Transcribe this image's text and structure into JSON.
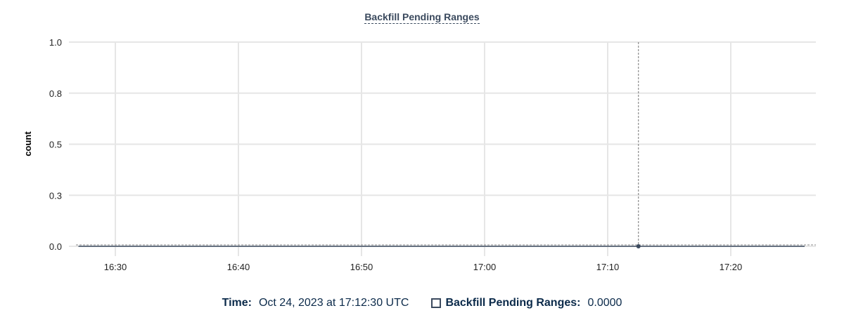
{
  "chart_data": {
    "type": "line",
    "title": "Backfill Pending Ranges",
    "xlabel": "",
    "ylabel": "count",
    "x_ticks": [
      "16:30",
      "16:40",
      "16:50",
      "17:00",
      "17:10",
      "17:20"
    ],
    "y_ticks": [
      "0.0",
      "0.3",
      "0.5",
      "0.8",
      "1.0"
    ],
    "ylim": [
      0,
      1
    ],
    "xlim": [
      "16:26:48",
      "17:26:30"
    ],
    "grid": true,
    "series": [
      {
        "name": "Backfill Pending Ranges",
        "color": "#3b4a5e",
        "points": [
          [
            "16:27:00",
            0
          ],
          [
            "17:12:30",
            0
          ],
          [
            "17:26:00",
            0
          ]
        ]
      }
    ],
    "crosshair": {
      "time": "17:12:30",
      "value": 0
    }
  },
  "legend": {
    "time_label": "Time:",
    "time_value": "Oct 24, 2023 at 17:12:30 UTC",
    "series_label": "Backfill Pending Ranges:",
    "series_value": "0.0000"
  }
}
